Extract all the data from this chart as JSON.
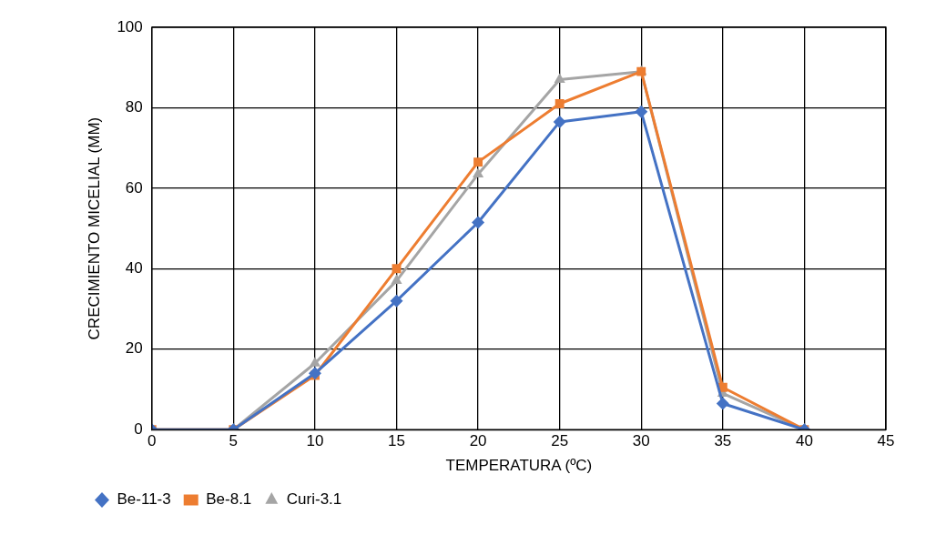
{
  "chart_data": {
    "type": "line",
    "xlabel": "TEMPERATURA (ºC)",
    "ylabel": "CRECIMIENTO MICELIAL (MM)",
    "x": [
      0,
      5,
      10,
      15,
      20,
      25,
      30,
      35,
      40
    ],
    "xlim": [
      0,
      45
    ],
    "xticks": [
      0,
      5,
      10,
      15,
      20,
      25,
      30,
      35,
      40,
      45
    ],
    "ylim": [
      0,
      100
    ],
    "yticks": [
      0,
      20,
      40,
      60,
      80,
      100
    ],
    "grid": true,
    "legend": "bottom left",
    "line_style": "solid",
    "series": [
      {
        "name": "Be-11-3",
        "color": "#4472c4",
        "marker": "diamond",
        "values": [
          0,
          0,
          14,
          32,
          51.5,
          76.5,
          79,
          6.5,
          0
        ]
      },
      {
        "name": "Be-8.1",
        "color": "#ed7d31",
        "marker": "square",
        "values": [
          0,
          0,
          13.5,
          40,
          66.5,
          81,
          89,
          10.5,
          0
        ]
      },
      {
        "name": "Curi-3.1",
        "color": "#a5a5a5",
        "marker": "triangle",
        "values": [
          0,
          0,
          16.5,
          37,
          63.5,
          87,
          89,
          9,
          0
        ]
      }
    ]
  }
}
